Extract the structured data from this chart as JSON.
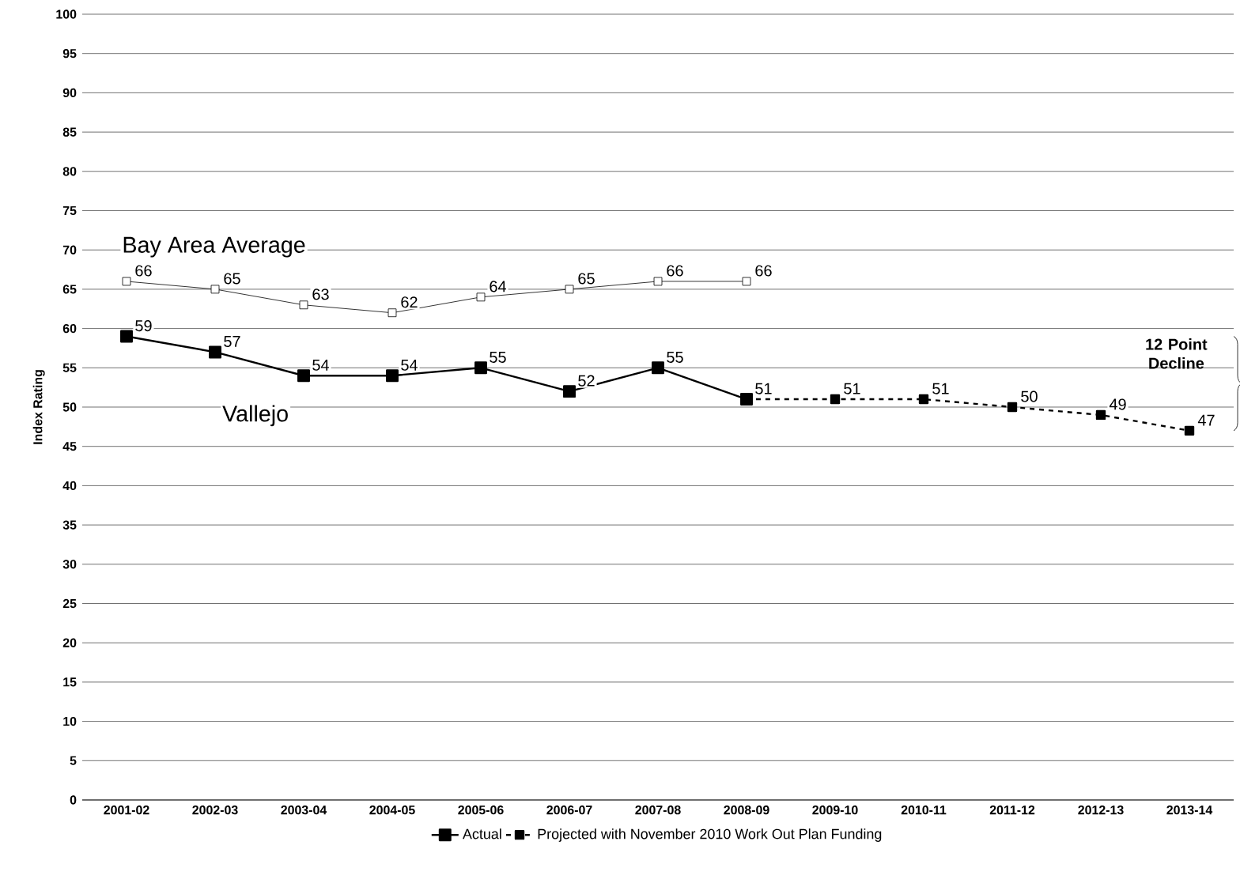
{
  "chart_data": {
    "type": "line",
    "categories": [
      "2001-02",
      "2002-03",
      "2003-04",
      "2004-05",
      "2005-06",
      "2006-07",
      "2007-08",
      "2008-09",
      "2009-10",
      "2010-11",
      "2011-12",
      "2012-13",
      "2013-14"
    ],
    "ylabel": "Index Rating",
    "series": [
      {
        "name": "Bay Area Average",
        "color": "#000000",
        "line_style": "solid",
        "values": [
          66,
          65,
          63,
          62,
          64,
          65,
          66,
          66,
          null,
          null,
          null,
          null,
          null
        ],
        "value_labels": [
          "66",
          "65",
          "63",
          "62",
          "64",
          "65",
          "66",
          "66",
          null,
          null,
          null,
          null,
          null
        ]
      },
      {
        "name": "Actual",
        "color": "#000000",
        "line_style": "solid",
        "values": [
          59,
          57,
          54,
          54,
          55,
          52,
          55,
          51,
          null,
          null,
          null,
          null,
          null
        ],
        "value_labels": [
          "59",
          "57",
          "54",
          "54",
          "55",
          "52",
          "55",
          "51",
          null,
          null,
          null,
          null,
          null
        ]
      },
      {
        "name": "Projected with November 2010 Work Out  Plan Funding",
        "color": "#000000",
        "line_style": "dashed",
        "values": [
          null,
          null,
          null,
          null,
          null,
          null,
          null,
          51,
          51,
          51,
          50,
          49,
          47
        ],
        "value_labels": [
          null,
          null,
          null,
          null,
          null,
          null,
          null,
          null,
          "51",
          "51",
          "50",
          "49",
          "47"
        ]
      }
    ],
    "annotations": [
      "Vallejo",
      "12 Point Decline"
    ],
    "ylim": [
      0,
      100
    ],
    "yticks": [
      0,
      5,
      10,
      15,
      20,
      25,
      30,
      35,
      40,
      45,
      50,
      55,
      60,
      65,
      70,
      75,
      80,
      85,
      90,
      95,
      100
    ],
    "grid": "y",
    "marker": "square",
    "legend": "bottom"
  }
}
